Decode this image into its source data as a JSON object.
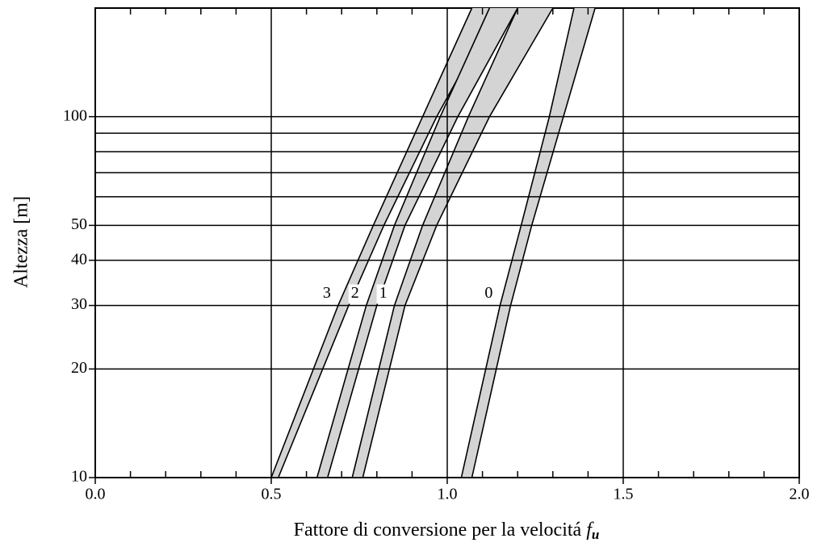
{
  "chart_data": {
    "type": "band",
    "xlabel": "Fattore di conversione per la velocitá",
    "xlabel_symbol": "f",
    "xlabel_subscript": "u",
    "ylabel": "Altezza [m]",
    "xlim": [
      0,
      2
    ],
    "ylim": [
      10,
      200
    ],
    "yscale": "log",
    "xticks": [
      {
        "value": 0,
        "label": "0.0"
      },
      {
        "value": 0.5,
        "label": "0.5"
      },
      {
        "value": 1,
        "label": "1.0"
      },
      {
        "value": 1.5,
        "label": "1.5"
      },
      {
        "value": 2,
        "label": "2.0"
      }
    ],
    "xminor": [
      0.1,
      0.2,
      0.3,
      0.4,
      0.6,
      0.7,
      0.8,
      0.9,
      1.1,
      1.2,
      1.3,
      1.4,
      1.6,
      1.7,
      1.8,
      1.9
    ],
    "yticks": [
      10,
      20,
      30,
      40,
      50,
      100
    ],
    "yminor_grid": [
      60,
      70,
      80,
      90
    ],
    "grid": true,
    "heights": [
      10,
      30,
      50,
      100,
      200
    ],
    "color": "#d4d4d4",
    "series": [
      {
        "name": "3",
        "lower": [
          0.5,
          0.69,
          0.79,
          0.93,
          1.07
        ],
        "upper": [
          0.52,
          0.72,
          0.82,
          0.97,
          1.14
        ]
      },
      {
        "name": "2",
        "lower": [
          0.63,
          0.77,
          0.85,
          0.98,
          1.12
        ],
        "upper": [
          0.66,
          0.8,
          0.88,
          1.03,
          1.2
        ]
      },
      {
        "name": "1",
        "lower": [
          0.73,
          0.85,
          0.93,
          1.06,
          1.2
        ],
        "upper": [
          0.76,
          0.88,
          0.97,
          1.12,
          1.3
        ]
      },
      {
        "name": "0",
        "lower": [
          1.04,
          1.15,
          1.21,
          1.29,
          1.36
        ],
        "upper": [
          1.07,
          1.18,
          1.24,
          1.33,
          1.42
        ]
      }
    ]
  }
}
